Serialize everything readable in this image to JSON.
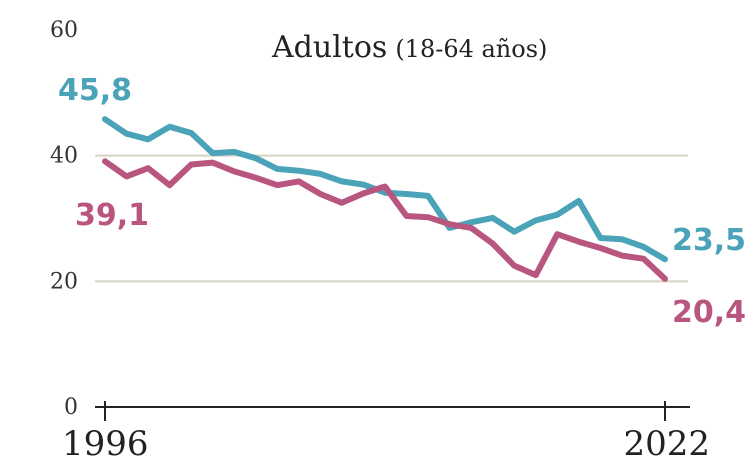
{
  "chart_data": {
    "type": "line",
    "title": "Adultos",
    "subtitle": "(18-64 años)",
    "x": [
      1996,
      1997,
      1998,
      1999,
      2000,
      2001,
      2002,
      2003,
      2004,
      2005,
      2006,
      2007,
      2008,
      2009,
      2010,
      2011,
      2012,
      2013,
      2014,
      2015,
      2016,
      2017,
      2018,
      2019,
      2020,
      2021,
      2022
    ],
    "series": [
      {
        "color": "#4aa3b8",
        "values": [
          45.8,
          43.5,
          42.6,
          44.6,
          43.6,
          40.4,
          40.6,
          39.6,
          37.9,
          37.6,
          37.1,
          35.9,
          35.4,
          34.1,
          33.9,
          33.6,
          28.5,
          29.4,
          30.1,
          27.9,
          29.7,
          30.6,
          32.8,
          26.9,
          26.7,
          25.5,
          23.5
        ],
        "start_label": "45,8",
        "end_label": "23,5"
      },
      {
        "color": "#b95680",
        "values": [
          39.1,
          36.7,
          38.0,
          35.3,
          38.6,
          38.9,
          37.5,
          36.5,
          35.3,
          35.9,
          33.9,
          32.5,
          34.0,
          35.1,
          30.4,
          30.2,
          29.1,
          28.5,
          26.0,
          22.5,
          21.0,
          27.5,
          26.3,
          25.3,
          24.1,
          23.6,
          20.4
        ],
        "start_label": "39,1",
        "end_label": "20,4"
      }
    ],
    "x_tick_labels": [
      "1996",
      "2022"
    ],
    "y_ticks": [
      0,
      20,
      40,
      60
    ],
    "ylim": [
      0,
      60
    ],
    "gridlines": [
      20,
      40
    ],
    "grid": true,
    "legend": "none"
  }
}
